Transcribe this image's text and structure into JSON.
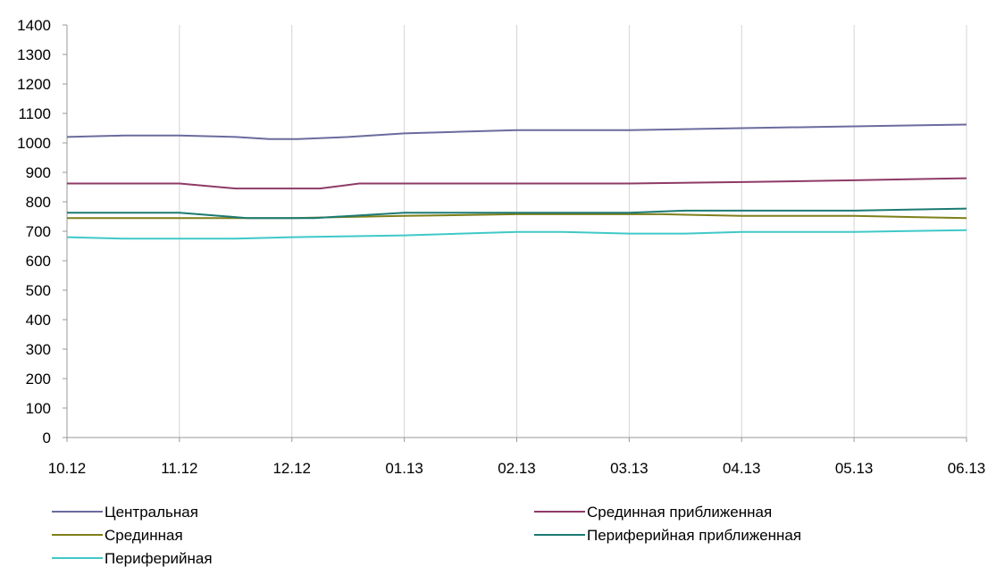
{
  "chart_data": {
    "type": "line",
    "x": [
      "10.12",
      "11.12",
      "12.12",
      "01.13",
      "02.13",
      "03.13",
      "04.13",
      "05.13",
      "06.13"
    ],
    "ylim": [
      0,
      1400
    ],
    "yticks": [
      0,
      100,
      200,
      300,
      400,
      500,
      600,
      700,
      800,
      900,
      1000,
      1100,
      1200,
      1300,
      1400
    ],
    "grid": {
      "vertical": true,
      "horizontal": false
    },
    "legend_position": "bottom",
    "series": [
      {
        "name": "Центральная",
        "color": "#6b6b9e",
        "points": [
          [
            0,
            1020
          ],
          [
            0.5,
            1025
          ],
          [
            1,
            1025
          ],
          [
            1.5,
            1020
          ],
          [
            1.8,
            1013
          ],
          [
            2.05,
            1013
          ],
          [
            2.5,
            1020
          ],
          [
            3,
            1032
          ],
          [
            3.5,
            1038
          ],
          [
            4,
            1043
          ],
          [
            5,
            1043
          ],
          [
            6,
            1050
          ],
          [
            7,
            1056
          ],
          [
            8,
            1062
          ]
        ]
      },
      {
        "name": "Срединная приближенная",
        "color": "#8e3a66",
        "points": [
          [
            0,
            862
          ],
          [
            1,
            862
          ],
          [
            1.5,
            845
          ],
          [
            2.25,
            845
          ],
          [
            2.6,
            862
          ],
          [
            3,
            862
          ],
          [
            4,
            862
          ],
          [
            5,
            862
          ],
          [
            6,
            867
          ],
          [
            7,
            873
          ],
          [
            8,
            880
          ]
        ]
      },
      {
        "name": "Срединная",
        "color": "#7f7f1a",
        "points": [
          [
            0,
            745
          ],
          [
            1,
            745
          ],
          [
            2,
            745
          ],
          [
            3,
            752
          ],
          [
            4,
            758
          ],
          [
            5,
            758
          ],
          [
            5.3,
            758
          ],
          [
            6,
            752
          ],
          [
            7,
            752
          ],
          [
            8,
            745
          ]
        ]
      },
      {
        "name": "Периферийная приближенная",
        "color": "#1a7a72",
        "points": [
          [
            0,
            763
          ],
          [
            1,
            763
          ],
          [
            1.6,
            745
          ],
          [
            2.2,
            745
          ],
          [
            3,
            763
          ],
          [
            4,
            763
          ],
          [
            5,
            763
          ],
          [
            5.5,
            770
          ],
          [
            6,
            770
          ],
          [
            7,
            770
          ],
          [
            8,
            777
          ]
        ]
      },
      {
        "name": "Периферийная",
        "color": "#40c8c8",
        "points": [
          [
            0,
            680
          ],
          [
            0.5,
            675
          ],
          [
            1,
            675
          ],
          [
            1.5,
            675
          ],
          [
            2,
            680
          ],
          [
            2.5,
            683
          ],
          [
            3,
            686
          ],
          [
            4,
            698
          ],
          [
            4.4,
            698
          ],
          [
            5,
            692
          ],
          [
            5.5,
            692
          ],
          [
            6,
            698
          ],
          [
            7,
            698
          ],
          [
            8,
            704
          ]
        ]
      }
    ]
  }
}
